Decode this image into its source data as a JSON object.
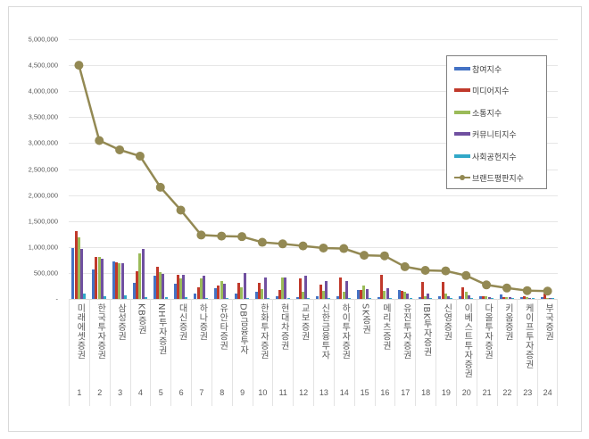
{
  "chart_data": {
    "type": "bar",
    "title": "",
    "xlabel": "",
    "ylabel": "",
    "ylim": [
      0,
      5000000
    ],
    "yticks": [
      "-",
      "500,000",
      "1,000,000",
      "1,500,000",
      "2,000,000",
      "2,500,000",
      "3,000,000",
      "3,500,000",
      "4,000,000",
      "4,500,000",
      "5,000,000"
    ],
    "grid": true,
    "legend_position": "upper right (inside)",
    "categories": [
      "미래에셋증권",
      "한국투자증권",
      "삼성증권",
      "KB증권",
      "NH투자증권",
      "대신증권",
      "하나증권",
      "유안타증권",
      "DB금융투자",
      "한화투자증권",
      "현대차증권",
      "교보증권",
      "신한금융투자",
      "하이투자증권",
      "SK증권",
      "메리츠증권",
      "유진투자증권",
      "IBK투자증권",
      "신영증권",
      "이베스트투자증권",
      "다올투자증권",
      "키움증권",
      "케이프투자증권",
      "부국증권"
    ],
    "ranks": [
      "1",
      "2",
      "3",
      "4",
      "5",
      "6",
      "7",
      "8",
      "9",
      "10",
      "11",
      "12",
      "13",
      "14",
      "15",
      "16",
      "17",
      "18",
      "19",
      "20",
      "21",
      "22",
      "23",
      "24"
    ],
    "series": [
      {
        "name": "참여지수",
        "type": "bar",
        "color": "#4472c4",
        "values": [
          980000,
          570000,
          720000,
          310000,
          450000,
          290000,
          110000,
          210000,
          110000,
          140000,
          50000,
          40000,
          60000,
          50000,
          180000,
          40000,
          170000,
          40000,
          50000,
          60000,
          60000,
          90000,
          40000,
          30000
        ]
      },
      {
        "name": "미디어지수",
        "type": "bar",
        "color": "#c0392b",
        "values": [
          1300000,
          810000,
          700000,
          530000,
          620000,
          460000,
          230000,
          260000,
          310000,
          310000,
          180000,
          390000,
          280000,
          420000,
          180000,
          460000,
          150000,
          330000,
          320000,
          220000,
          60000,
          40000,
          60000,
          100000
        ]
      },
      {
        "name": "소통지수",
        "type": "bar",
        "color": "#9bbb59",
        "values": [
          1180000,
          810000,
          690000,
          870000,
          520000,
          400000,
          390000,
          350000,
          230000,
          190000,
          410000,
          130000,
          150000,
          130000,
          250000,
          160000,
          130000,
          60000,
          110000,
          130000,
          50000,
          30000,
          30000,
          20000
        ]
      },
      {
        "name": "커뮤니티지수",
        "type": "bar",
        "color": "#7050a0",
        "values": [
          960000,
          770000,
          690000,
          970000,
          480000,
          470000,
          440000,
          300000,
          500000,
          420000,
          410000,
          440000,
          340000,
          340000,
          190000,
          200000,
          110000,
          100000,
          60000,
          70000,
          40000,
          30000,
          20000,
          20000
        ]
      },
      {
        "name": "사회공헌지수",
        "type": "bar",
        "color": "#31a8c8",
        "values": [
          110000,
          60000,
          70000,
          40000,
          40000,
          30000,
          10000,
          20000,
          20000,
          10000,
          10000,
          10000,
          10000,
          10000,
          10000,
          10000,
          10000,
          10000,
          10000,
          10000,
          10000,
          10000,
          10000,
          10000
        ]
      },
      {
        "name": "브랜드평판지수",
        "type": "line",
        "color": "#938953",
        "values": [
          4500000,
          3050000,
          2870000,
          2750000,
          2150000,
          1710000,
          1230000,
          1210000,
          1200000,
          1090000,
          1060000,
          1020000,
          980000,
          970000,
          840000,
          830000,
          620000,
          550000,
          540000,
          450000,
          270000,
          210000,
          160000,
          150000
        ]
      }
    ]
  }
}
